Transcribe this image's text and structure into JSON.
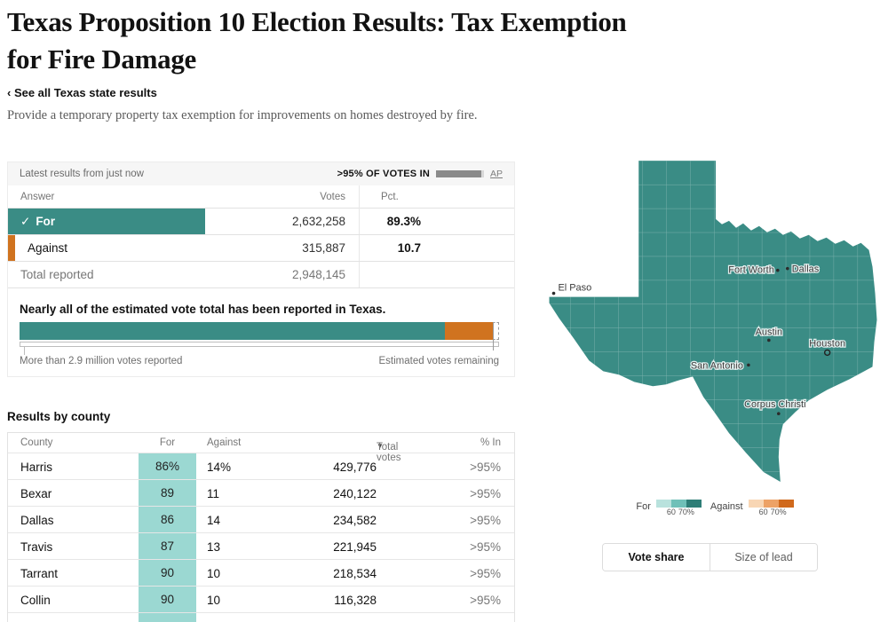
{
  "page": {
    "title": "Texas Proposition 10 Election Results: Tax Exemption for Fire Damage",
    "back_link": "‹ See all Texas state results",
    "description": "Provide a temporary property tax exemption for improvements on homes destroyed by fire."
  },
  "results_panel": {
    "updated_text": "Latest results from just now",
    "votes_in_label": ">95% OF VOTES IN",
    "votes_in_fill_pct": 95,
    "source_label": "AP",
    "columns": {
      "answer": "Answer",
      "votes": "Votes",
      "pct": "Pct."
    },
    "check_icon": "✓",
    "rows": [
      {
        "answer": "For",
        "votes": "2,632,258",
        "pct_text": "89.3%",
        "pct_value": 89.3,
        "color": "#3a8c85"
      },
      {
        "answer": "Against",
        "votes": "315,887",
        "pct_text": "10.7",
        "pct_value": 10.7,
        "color": "#d0731f"
      }
    ],
    "total_row": {
      "label": "Total reported",
      "votes": "2,948,145"
    },
    "estimate": {
      "headline": "Nearly all of the estimated vote total has been reported in Texas.",
      "segments": [
        {
          "name": "for-share-reported",
          "pct": 88.7,
          "color": "#3a8c85"
        },
        {
          "name": "against-share-reported",
          "pct": 10.0,
          "color": "#d0731f"
        },
        {
          "name": "estimated-remaining",
          "pct": 1.3,
          "color": "dashed-white"
        }
      ],
      "reported_label": "More than 2.9 million votes reported",
      "remaining_label": "Estimated votes remaining"
    }
  },
  "county_table": {
    "heading": "Results by county",
    "sort_icon": "▼",
    "columns": {
      "county": "County",
      "for": "For",
      "against": "Against",
      "total": "Total votes",
      "pct_in": "% In"
    },
    "rows": [
      {
        "county": "Harris",
        "for": "86%",
        "against": "14%",
        "total": "429,776",
        "pct_in": ">95%"
      },
      {
        "county": "Bexar",
        "for": "89",
        "against": "11",
        "total": "240,122",
        "pct_in": ">95%"
      },
      {
        "county": "Dallas",
        "for": "86",
        "against": "14",
        "total": "234,582",
        "pct_in": ">95%"
      },
      {
        "county": "Travis",
        "for": "87",
        "against": "13",
        "total": "221,945",
        "pct_in": ">95%"
      },
      {
        "county": "Tarrant",
        "for": "90",
        "against": "10",
        "total": "218,534",
        "pct_in": ">95%"
      },
      {
        "county": "Collin",
        "for": "90",
        "against": "10",
        "total": "116,328",
        "pct_in": ">95%"
      }
    ]
  },
  "map": {
    "fill_color": "#3a8c85",
    "cities": [
      {
        "name": "El Paso"
      },
      {
        "name": "Fort Worth"
      },
      {
        "name": "Dallas"
      },
      {
        "name": "Austin"
      },
      {
        "name": "Houston"
      },
      {
        "name": "San Antonio"
      },
      {
        "name": "Corpus Christi"
      }
    ],
    "legend": {
      "for_label": "For",
      "against_label": "Against",
      "tick_60": "60",
      "tick_70": "70%",
      "for_colors": [
        "#b9e2dd",
        "#6fc0b8",
        "#2e7e77"
      ],
      "against_colors": [
        "#f8d6b4",
        "#eda266",
        "#d0691c"
      ]
    },
    "toggle": {
      "vote_share": "Vote share",
      "size_of_lead": "Size of lead"
    }
  }
}
